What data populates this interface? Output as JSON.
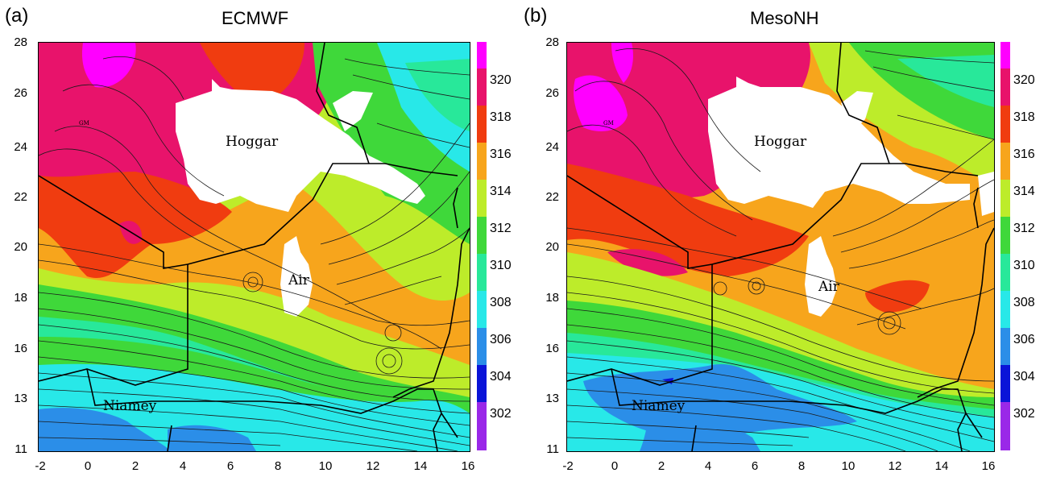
{
  "panels": [
    {
      "letter": "(a)",
      "title": "ECMWF"
    },
    {
      "letter": "(b)",
      "title": "MesoNH"
    }
  ],
  "axes": {
    "y_ticks": [
      "28",
      "26",
      "24",
      "22",
      "20",
      "18",
      "16",
      "13",
      "11"
    ],
    "x_ticks": [
      "-2",
      "0",
      "2",
      "4",
      "6",
      "8",
      "10",
      "12",
      "14",
      "16"
    ]
  },
  "colorbar": {
    "labels": [
      "320",
      "318",
      "316",
      "314",
      "312",
      "310",
      "308",
      "306",
      "304",
      "302"
    ],
    "colors": [
      "#ff00ff",
      "#e8136b",
      "#f03c10",
      "#f7a51c",
      "#bdec2a",
      "#3fd83a",
      "#28e89a",
      "#28e8e8",
      "#2b8ee8",
      "#0a14d8",
      "#9a28e8"
    ]
  },
  "places": {
    "hoggar": "Hoggar",
    "air": "Air",
    "niamey": "Niamey",
    "gm": "GM"
  },
  "colors": {
    "white_mask": "#ffffff",
    "streamline": "#1a1a1a",
    "border": "#000000"
  }
}
